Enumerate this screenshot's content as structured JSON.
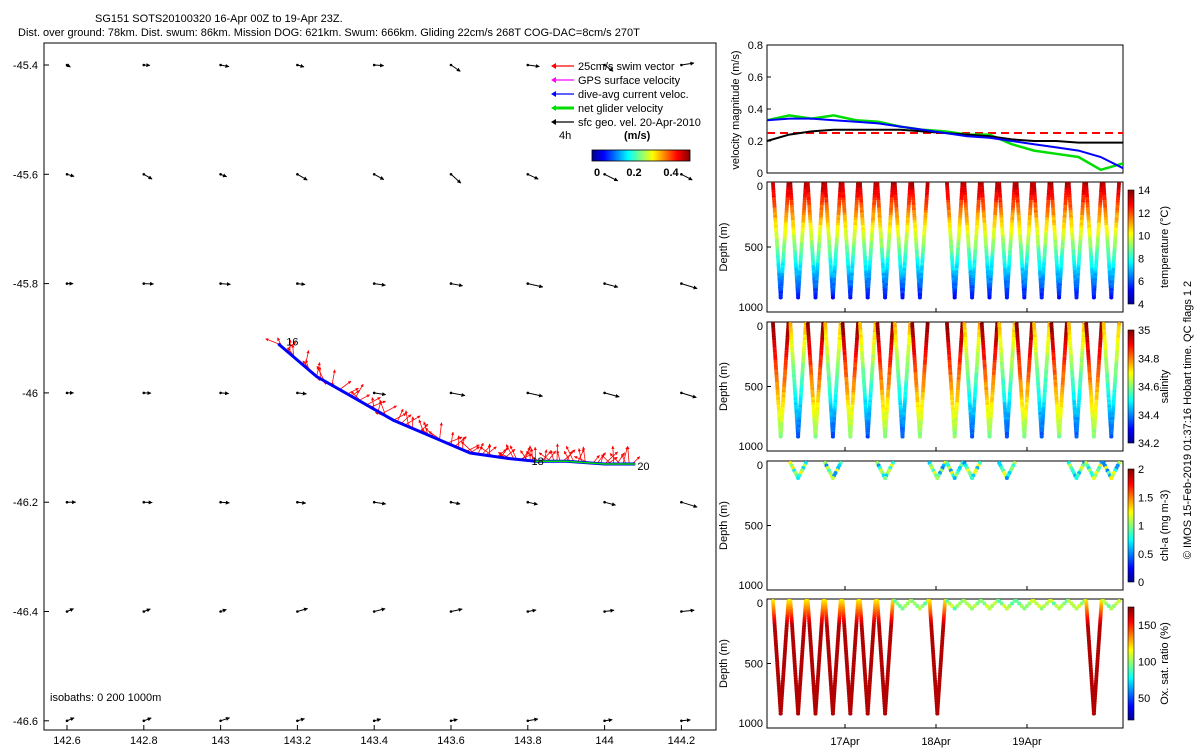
{
  "header": {
    "line1": "SG151 SOTS20100320 16-Apr 00Z to 19-Apr 23Z.",
    "line2": "Dist. over ground: 78km. Dist. swum: 86km. Mission DOG: 621km. Swum: 666km. Gliding 22cm/s 268T COG-DAC=8cm/s 270T"
  },
  "legend": {
    "items": [
      {
        "label": "25cm/s swim vector",
        "color": "#ff0000"
      },
      {
        "label": "GPS surface velocity",
        "color": "#ff00ff"
      },
      {
        "label": "dive-avg current veloc.",
        "color": "#0000ff"
      },
      {
        "label": "net glider velocity",
        "color": "#00dd00"
      },
      {
        "label": "sfc geo. vel. 20-Apr-2010",
        "color": "#000000"
      }
    ],
    "colorbar_left_label": "4h",
    "colorbar_units": "(m/s)",
    "colorbar_ticks": [
      "0",
      "0.2",
      "0.4"
    ]
  },
  "isobaths_note": "isobaths: 0   200  1000m",
  "credit": "© IMOS 15-Feb-2019 01:37:16 Hobart time. QC flags 1  2",
  "chart_data": [
    {
      "type": "scatter",
      "name": "map",
      "xlim": [
        142.6,
        144.3
      ],
      "ylim": [
        -46.6,
        -45.35
      ],
      "xticks": [
        "142.6",
        "142.8",
        "143",
        "143.2",
        "143.4",
        "143.6",
        "143.8",
        "144",
        "144.2"
      ],
      "yticks": [
        "-45.4",
        "-45.6",
        "-45.8",
        "-46",
        "-46.2",
        "-46.4",
        "-46.6"
      ],
      "track_labels": [
        "16",
        "18",
        "20"
      ],
      "track": [
        [
          143.15,
          -45.91
        ],
        [
          143.25,
          -45.97
        ],
        [
          143.35,
          -46.01
        ],
        [
          143.45,
          -46.05
        ],
        [
          143.55,
          -46.08
        ],
        [
          143.65,
          -46.11
        ],
        [
          143.75,
          -46.12
        ],
        [
          143.82,
          -46.125
        ],
        [
          143.9,
          -46.125
        ],
        [
          144.0,
          -46.13
        ],
        [
          144.08,
          -46.13
        ]
      ]
    },
    {
      "type": "line",
      "name": "velocity",
      "ylabel": "velocity magnitude (m/s)",
      "ylim": [
        0,
        0.8
      ],
      "yticks": [
        "0",
        "0.2",
        "0.4",
        "0.6",
        "0.8"
      ],
      "x": [
        0,
        0.25,
        0.5,
        0.75,
        1,
        1.25,
        1.5,
        1.75,
        2,
        2.25,
        2.5,
        2.75,
        3,
        3.25,
        3.5,
        3.75,
        4
      ],
      "series": [
        {
          "color": "#ff0000",
          "dashed": true,
          "values": [
            0.25,
            0.25,
            0.25,
            0.25,
            0.25,
            0.25,
            0.25,
            0.25,
            0.25,
            0.25,
            0.25,
            0.25,
            0.25,
            0.25,
            0.25,
            0.25,
            0.25
          ]
        },
        {
          "color": "#00dd00",
          "values": [
            0.33,
            0.36,
            0.34,
            0.36,
            0.33,
            0.32,
            0.29,
            0.27,
            0.26,
            0.24,
            0.24,
            0.18,
            0.14,
            0.12,
            0.1,
            0.02,
            0.06
          ]
        },
        {
          "color": "#000000",
          "values": [
            0.2,
            0.24,
            0.26,
            0.27,
            0.27,
            0.27,
            0.27,
            0.26,
            0.25,
            0.24,
            0.23,
            0.21,
            0.2,
            0.2,
            0.19,
            0.19,
            0.19
          ]
        },
        {
          "color": "#0000ff",
          "values": [
            0.33,
            0.34,
            0.34,
            0.33,
            0.32,
            0.31,
            0.29,
            0.27,
            0.25,
            0.23,
            0.22,
            0.2,
            0.18,
            0.16,
            0.14,
            0.1,
            0.03
          ]
        }
      ]
    },
    {
      "type": "scatter",
      "name": "temperature",
      "ylabel": "Depth (m)",
      "cbar_label": "temperature (°C)",
      "cbar_range": [
        4,
        14
      ],
      "cbar_ticks": [
        "4",
        "6",
        "8",
        "10",
        "12",
        "14"
      ],
      "depth_ticks": [
        "0",
        "500",
        "1000"
      ]
    },
    {
      "type": "scatter",
      "name": "salinity",
      "ylabel": "Depth (m)",
      "cbar_label": "salinity",
      "cbar_range": [
        34.2,
        35
      ],
      "cbar_ticks": [
        "34.2",
        "34.4",
        "34.6",
        "34.8",
        "35"
      ],
      "depth_ticks": [
        "0",
        "500",
        "1000"
      ]
    },
    {
      "type": "scatter",
      "name": "chla",
      "ylabel": "Depth (m)",
      "cbar_label": "chl-a (mg m-3)",
      "cbar_range": [
        0,
        2
      ],
      "cbar_ticks": [
        "0",
        "0.5",
        "1",
        "1.5",
        "2"
      ],
      "depth_ticks": [
        "0",
        "500",
        "1000"
      ]
    },
    {
      "type": "scatter",
      "name": "oxygen",
      "ylabel": "Depth (m)",
      "cbar_label": "Ox. sat. ratio (%)",
      "cbar_range": [
        20,
        175
      ],
      "cbar_ticks": [
        "50",
        "100",
        "150"
      ],
      "depth_ticks": [
        "0",
        "500",
        "1000"
      ],
      "xticks": [
        "17Apr",
        "18Apr",
        "19Apr"
      ]
    }
  ]
}
